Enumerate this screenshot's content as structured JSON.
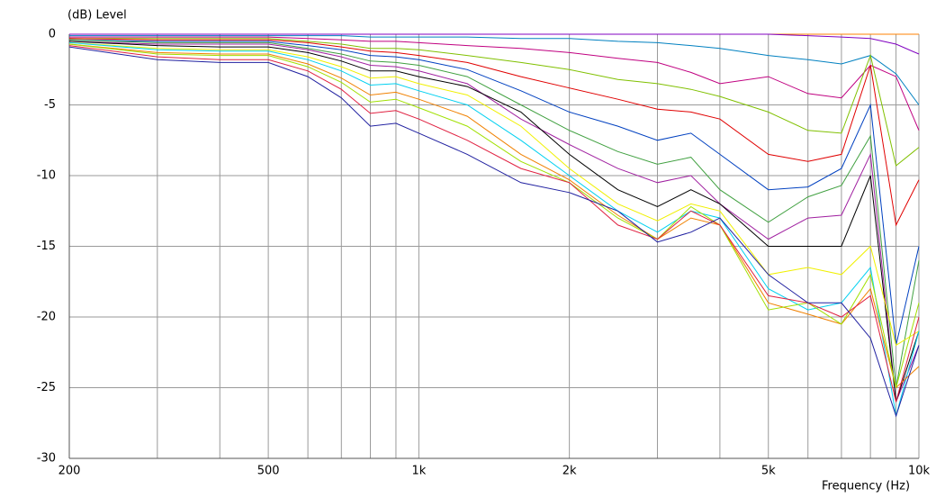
{
  "chart_data": {
    "type": "line",
    "y_label": "(dB)  Level",
    "x_label": "Frequency  (Hz)",
    "x": [
      200,
      300,
      400,
      500,
      600,
      700,
      800,
      900,
      1000,
      1250,
      1600,
      2000,
      2500,
      3000,
      3500,
      4000,
      5000,
      6000,
      7000,
      8000,
      9000,
      10000
    ],
    "xscale": "log",
    "xlim": [
      200,
      10000
    ],
    "xticks": [
      200,
      500,
      {
        "value": 1000,
        "label": "1k"
      },
      {
        "value": 2000,
        "label": "2k"
      },
      {
        "value": 5000,
        "label": "5k"
      },
      {
        "value": 10000,
        "label": "10k"
      }
    ],
    "xminor": [
      300,
      400,
      600,
      700,
      800,
      900,
      3000,
      4000,
      6000,
      7000,
      8000,
      9000
    ],
    "ylim": [
      -30,
      0
    ],
    "yticks": [
      0,
      -5,
      -10,
      -15,
      -20,
      -25,
      -30
    ],
    "grid": true,
    "series": [
      {
        "color": "#ff8000",
        "values": [
          0,
          0,
          0,
          0,
          0,
          0,
          0,
          0,
          0,
          0,
          0,
          0,
          0,
          0,
          0,
          0,
          0,
          0,
          0,
          0,
          0,
          0
        ]
      },
      {
        "color": "#8000c0",
        "values": [
          0,
          0,
          0,
          0,
          0,
          0,
          0,
          0,
          0,
          0,
          0,
          0,
          0,
          0,
          0,
          0,
          0,
          -0.1,
          -0.2,
          -0.3,
          -0.7,
          -1.4
        ]
      },
      {
        "color": "#0080c0",
        "values": [
          -0.1,
          -0.1,
          -0.1,
          -0.1,
          -0.1,
          -0.1,
          -0.2,
          -0.2,
          -0.2,
          -0.2,
          -0.3,
          -0.3,
          -0.5,
          -0.6,
          -0.8,
          -1,
          -1.5,
          -1.8,
          -2.1,
          -1.5,
          -2.8,
          -5
        ]
      },
      {
        "color": "#c00080",
        "values": [
          -0.2,
          -0.2,
          -0.2,
          -0.2,
          -0.3,
          -0.4,
          -0.5,
          -0.5,
          -0.6,
          -0.8,
          -1,
          -1.3,
          -1.7,
          -2,
          -2.7,
          -3.5,
          -3,
          -4.2,
          -4.5,
          -2.2,
          -3,
          -6.8
        ]
      },
      {
        "color": "#80c000",
        "values": [
          -0.3,
          -0.3,
          -0.3,
          -0.3,
          -0.5,
          -0.7,
          -1,
          -1,
          -1.1,
          -1.5,
          -2,
          -2.5,
          -3.2,
          -3.5,
          -3.9,
          -4.4,
          -5.5,
          -6.8,
          -7,
          -1.5,
          -9.3,
          -8
        ]
      },
      {
        "color": "#e00000",
        "values": [
          -0.3,
          -0.4,
          -0.4,
          -0.4,
          -0.6,
          -0.9,
          -1.2,
          -1.3,
          -1.5,
          -2,
          -3,
          -3.8,
          -4.6,
          -5.3,
          -5.5,
          -6,
          -8.5,
          -9,
          -8.5,
          -2.2,
          -13.5,
          -10.3
        ]
      },
      {
        "color": "#0040c0",
        "values": [
          -0.4,
          -0.5,
          -0.5,
          -0.5,
          -0.8,
          -1.1,
          -1.5,
          -1.6,
          -1.8,
          -2.5,
          -4,
          -5.5,
          -6.5,
          -7.5,
          -7,
          -8.5,
          -11,
          -10.8,
          -9.5,
          -5,
          -22,
          -15
        ]
      },
      {
        "color": "#40a040",
        "values": [
          -0.4,
          -0.6,
          -0.6,
          -0.6,
          -1,
          -1.4,
          -1.9,
          -2,
          -2.2,
          -3,
          -5,
          -6.8,
          -8.3,
          -9.2,
          -8.7,
          -11,
          -13.3,
          -11.5,
          -10.7,
          -7.2,
          -25,
          -16
        ]
      },
      {
        "color": "#a020a0",
        "values": [
          -0.5,
          -0.7,
          -0.7,
          -0.7,
          -1.1,
          -1.6,
          -2.2,
          -2.3,
          -2.6,
          -3.5,
          -6,
          -7.8,
          -9.5,
          -10.5,
          -10,
          -12,
          -14.5,
          -13,
          -12.8,
          -8.5,
          -26,
          -22
        ]
      },
      {
        "color": "#000000",
        "values": [
          -0.5,
          -0.8,
          -0.9,
          -0.9,
          -1.3,
          -1.9,
          -2.6,
          -2.6,
          -3,
          -3.7,
          -5.5,
          -8.5,
          -11,
          -12.2,
          -11,
          -12,
          -15,
          -15,
          -15,
          -10,
          -26,
          -21
        ]
      },
      {
        "color": "#f0f000",
        "values": [
          -0.6,
          -1,
          -1.1,
          -1.1,
          -1.6,
          -2.3,
          -3.1,
          -3,
          -3.5,
          -4.3,
          -6.5,
          -9.5,
          -12,
          -13.2,
          -12,
          -12.5,
          -17,
          -16.5,
          -17,
          -15,
          -22,
          -21
        ]
      },
      {
        "color": "#00d0f0",
        "values": [
          -0.6,
          -1.1,
          -1.2,
          -1.2,
          -1.8,
          -2.6,
          -3.6,
          -3.5,
          -4,
          -5,
          -7.5,
          -10,
          -12.5,
          -14,
          -12.5,
          -13,
          -18,
          -19.5,
          -19,
          -16.5,
          -27,
          -21
        ]
      },
      {
        "color": "#f08000",
        "values": [
          -0.7,
          -1.3,
          -1.4,
          -1.4,
          -2.1,
          -3.1,
          -4.3,
          -4.1,
          -4.6,
          -5.8,
          -8.5,
          -10.3,
          -12.8,
          -14.5,
          -13,
          -13.5,
          -19,
          -19.8,
          -20.5,
          -18,
          -25,
          -23.5
        ]
      },
      {
        "color": "#a0e000",
        "values": [
          -0.7,
          -1.4,
          -1.5,
          -1.5,
          -2.3,
          -3.4,
          -4.8,
          -4.6,
          -5.2,
          -6.5,
          -9,
          -10.5,
          -13,
          -14.5,
          -12.2,
          -13.5,
          -19.5,
          -19,
          -20.5,
          -17,
          -25,
          -19
        ]
      },
      {
        "color": "#e02040",
        "values": [
          -0.8,
          -1.6,
          -1.8,
          -1.8,
          -2.6,
          -3.9,
          -5.6,
          -5.4,
          -6,
          -7.5,
          -9.5,
          -10.5,
          -13.5,
          -14.5,
          -12.5,
          -13.5,
          -18.5,
          -19,
          -20,
          -18.5,
          -26,
          -20
        ]
      },
      {
        "color": "#2020a0",
        "values": [
          -0.9,
          -1.8,
          -2,
          -2,
          -3,
          -4.5,
          -6.5,
          -6.3,
          -7,
          -8.5,
          -10.5,
          -11.2,
          -12.5,
          -14.7,
          -14,
          -13,
          -17,
          -19,
          -19,
          -21.5,
          -27,
          -22
        ]
      }
    ]
  }
}
